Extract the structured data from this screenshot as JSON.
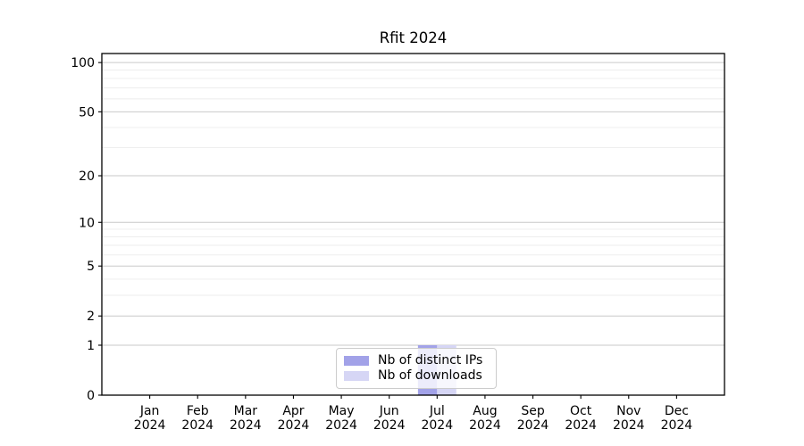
{
  "chart_data": {
    "type": "bar",
    "title": "Rfit 2024",
    "x_year": "2024",
    "categories": [
      "Jan",
      "Feb",
      "Mar",
      "Apr",
      "May",
      "Jun",
      "Jul",
      "Aug",
      "Sep",
      "Oct",
      "Nov",
      "Dec"
    ],
    "series": [
      {
        "name": "Nb of distinct IPs",
        "color": "#a2a2e8",
        "values": [
          0,
          0,
          0,
          0,
          0,
          0,
          1,
          0,
          0,
          0,
          0,
          0
        ]
      },
      {
        "name": "Nb of downloads",
        "color": "#d6d6f5",
        "values": [
          0,
          0,
          0,
          0,
          0,
          0,
          1,
          0,
          0,
          0,
          0,
          0
        ]
      }
    ],
    "y_scale": "log1p",
    "ylim": [
      0,
      113.5
    ],
    "y_ticks": [
      0,
      1,
      2,
      5,
      10,
      20,
      50,
      100
    ],
    "y_minor_ticks": [
      3,
      4,
      6,
      7,
      8,
      9,
      30,
      40,
      60,
      70,
      80,
      90
    ],
    "grid": "horizontal",
    "legend_position": "lower center",
    "colors": {
      "major_grid": "#c9c9c9",
      "minor_grid": "#ececec",
      "axis": "#000000",
      "tick_text": "#000000"
    }
  }
}
